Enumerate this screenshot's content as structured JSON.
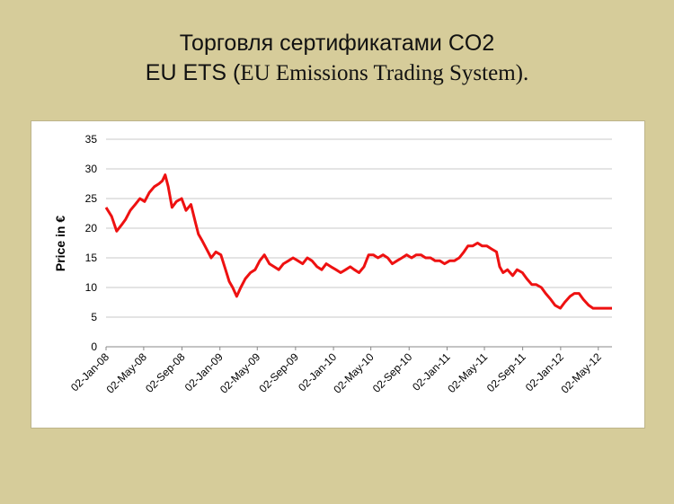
{
  "slide": {
    "title_line1": "Торговля сертификатами CO2",
    "title_line2_a": "EU ETS (",
    "title_line2_b": "EU Emissions Trading System",
    "title_line2_c": ")."
  },
  "chart_data": {
    "type": "line",
    "title": "",
    "xlabel": "",
    "ylabel": "Price in €",
    "ylim": [
      0,
      35
    ],
    "yticks": [
      0,
      5,
      10,
      15,
      20,
      25,
      30,
      35
    ],
    "xlim": [
      "2008-01-02",
      "2012-06-15"
    ],
    "xtick_labels": [
      "02-Jan-08",
      "02-May-08",
      "02-Sep-08",
      "02-Jan-09",
      "02-May-09",
      "02-Sep-09",
      "02-Jan-10",
      "02-May-10",
      "02-Sep-10",
      "02-Jan-11",
      "02-May-11",
      "02-Sep-11",
      "02-Jan-12",
      "02-May-12"
    ],
    "xtick_dates": [
      "2008-01-02",
      "2008-05-02",
      "2008-09-02",
      "2009-01-02",
      "2009-05-02",
      "2009-09-02",
      "2010-01-02",
      "2010-05-02",
      "2010-09-02",
      "2011-01-02",
      "2011-05-02",
      "2011-09-02",
      "2012-01-02",
      "2012-05-02"
    ],
    "grid": true,
    "legend": "none",
    "series_color": "#ee1111",
    "series": [
      {
        "x": [
          "2008-01-02",
          "2008-01-20",
          "2008-02-05",
          "2008-02-20",
          "2008-03-05",
          "2008-03-20",
          "2008-04-05",
          "2008-04-20",
          "2008-05-05",
          "2008-05-20",
          "2008-06-05",
          "2008-06-20",
          "2008-07-01",
          "2008-07-10",
          "2008-07-20",
          "2008-08-01",
          "2008-08-15",
          "2008-09-01",
          "2008-09-15",
          "2008-10-01",
          "2008-10-15",
          "2008-10-25",
          "2008-11-05",
          "2008-11-20",
          "2008-12-05",
          "2008-12-20",
          "2009-01-05",
          "2009-01-20",
          "2009-02-01",
          "2009-02-12",
          "2009-02-25",
          "2009-03-10",
          "2009-03-25",
          "2009-04-10",
          "2009-04-25",
          "2009-05-10",
          "2009-05-25",
          "2009-06-10",
          "2009-06-25",
          "2009-07-10",
          "2009-07-25",
          "2009-08-10",
          "2009-08-25",
          "2009-09-10",
          "2009-09-25",
          "2009-10-10",
          "2009-10-25",
          "2009-11-10",
          "2009-11-25",
          "2009-12-10",
          "2009-12-25",
          "2010-01-10",
          "2010-01-25",
          "2010-02-10",
          "2010-02-25",
          "2010-03-10",
          "2010-03-25",
          "2010-04-10",
          "2010-04-25",
          "2010-05-10",
          "2010-05-25",
          "2010-06-10",
          "2010-06-25",
          "2010-07-10",
          "2010-07-25",
          "2010-08-10",
          "2010-08-25",
          "2010-09-10",
          "2010-09-25",
          "2010-10-10",
          "2010-10-25",
          "2010-11-10",
          "2010-11-25",
          "2010-12-10",
          "2010-12-25",
          "2011-01-10",
          "2011-01-25",
          "2011-02-10",
          "2011-02-25",
          "2011-03-10",
          "2011-03-25",
          "2011-04-10",
          "2011-04-25",
          "2011-05-10",
          "2011-05-25",
          "2011-06-10",
          "2011-06-20",
          "2011-07-01",
          "2011-07-15",
          "2011-08-01",
          "2011-08-15",
          "2011-09-01",
          "2011-09-15",
          "2011-10-01",
          "2011-10-15",
          "2011-11-01",
          "2011-11-15",
          "2011-12-01",
          "2011-12-15",
          "2012-01-01",
          "2012-01-15",
          "2012-02-01",
          "2012-02-15",
          "2012-03-01",
          "2012-03-15",
          "2012-04-01",
          "2012-04-15",
          "2012-05-01",
          "2012-05-15",
          "2012-06-01",
          "2012-06-15"
        ],
        "y": [
          23.5,
          22.0,
          19.5,
          20.5,
          21.5,
          23.0,
          24.0,
          25.0,
          24.5,
          26.0,
          27.0,
          27.5,
          28.0,
          29.0,
          27.0,
          23.5,
          24.5,
          25.0,
          23.0,
          24.0,
          21.0,
          19.0,
          18.0,
          16.5,
          15.0,
          16.0,
          15.5,
          13.0,
          11.0,
          10.0,
          8.5,
          10.0,
          11.5,
          12.5,
          13.0,
          14.5,
          15.5,
          14.0,
          13.5,
          13.0,
          14.0,
          14.5,
          15.0,
          14.5,
          14.0,
          15.0,
          14.5,
          13.5,
          13.0,
          14.0,
          13.5,
          13.0,
          12.5,
          13.0,
          13.5,
          13.0,
          12.5,
          13.5,
          15.5,
          15.5,
          15.0,
          15.5,
          15.0,
          14.0,
          14.5,
          15.0,
          15.5,
          15.0,
          15.5,
          15.5,
          15.0,
          15.0,
          14.5,
          14.5,
          14.0,
          14.5,
          14.5,
          15.0,
          16.0,
          17.0,
          17.0,
          17.5,
          17.0,
          17.0,
          16.5,
          16.0,
          13.5,
          12.5,
          13.0,
          12.0,
          13.0,
          12.5,
          11.5,
          10.5,
          10.5,
          10.0,
          9.0,
          8.0,
          7.0,
          6.5,
          7.5,
          8.5,
          9.0,
          9.0,
          8.0,
          7.0,
          6.5,
          6.5,
          6.5,
          6.5,
          6.5
        ]
      }
    ]
  }
}
